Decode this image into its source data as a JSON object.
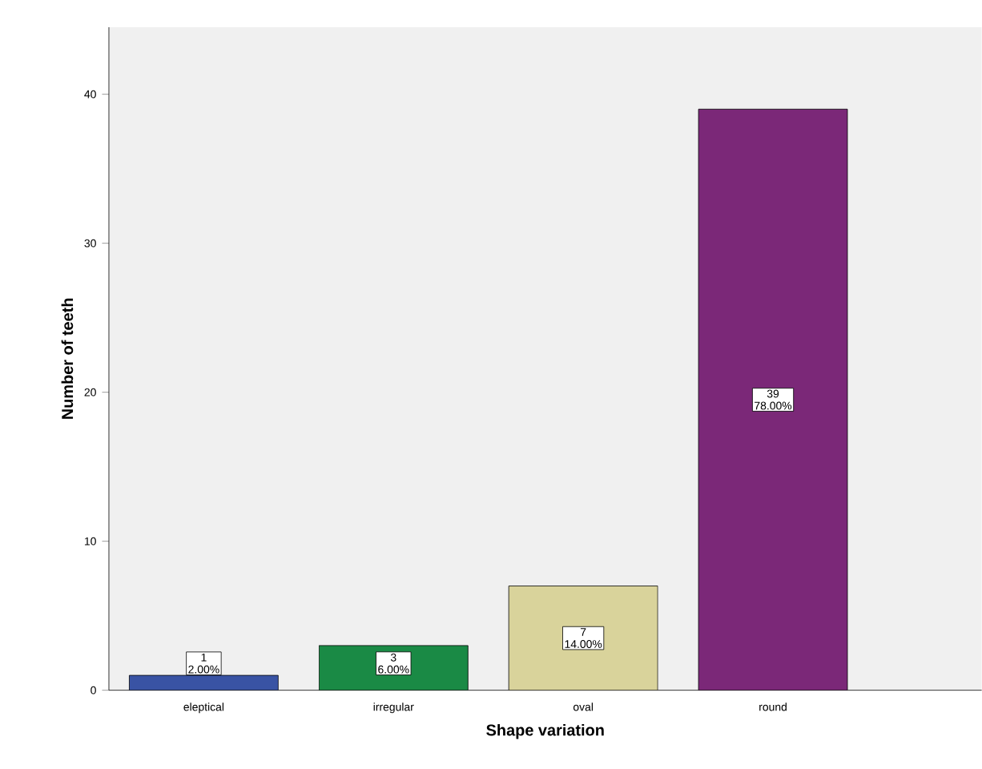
{
  "chart_data": {
    "type": "bar",
    "xlabel": "Shape variation",
    "ylabel": "Number of teeth",
    "categories": [
      "eleptical",
      "irregular",
      "oval",
      "round"
    ],
    "values": [
      1,
      3,
      7,
      39
    ],
    "colors": [
      "#3953a4",
      "#1a8a45",
      "#d9d39b",
      "#7b2878"
    ],
    "ylim": [
      0,
      44.5
    ],
    "yticks": [
      0,
      10,
      20,
      30,
      40
    ],
    "data_labels": true,
    "annotations": [
      "2.00%",
      "6.00%",
      "14.00%",
      "78.00%"
    ]
  }
}
